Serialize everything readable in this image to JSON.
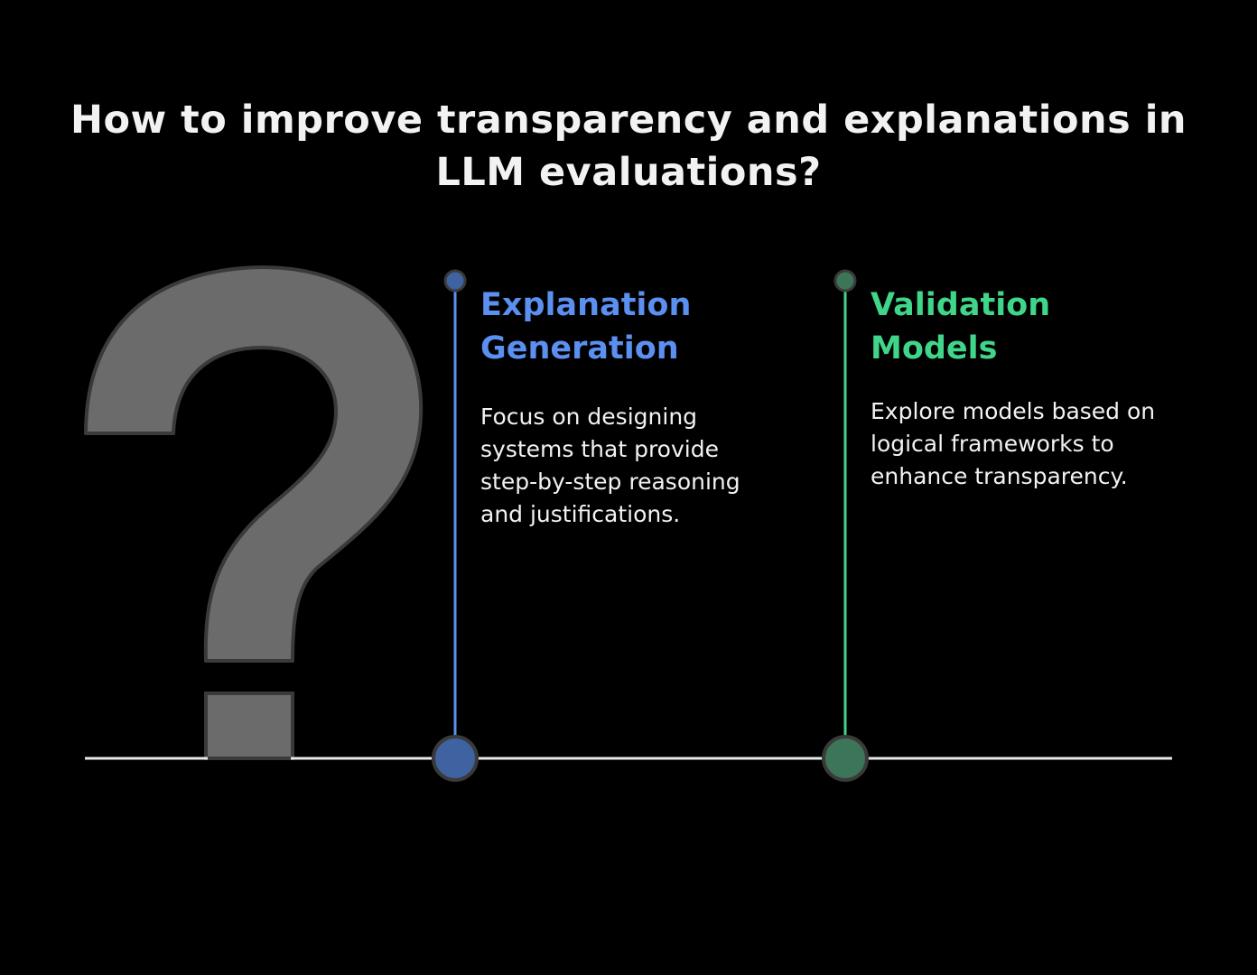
{
  "title": "How to improve transparency and explanations in LLM evaluations?",
  "items": [
    {
      "title": "Explanation Generation",
      "description": "Focus on designing systems that provide step-by-step reasoning and justifications.",
      "color": "#5b8ff0",
      "marker_fill": "#3f62a0"
    },
    {
      "title": "Validation Models",
      "description": "Explore models based on logical frameworks to enhance transparency.",
      "color": "#3fd68a",
      "marker_fill": "#3c7558"
    }
  ],
  "colors": {
    "background": "#000000",
    "text": "#f2f2f2",
    "baseline": "#e8e8e8",
    "question_mark_fill": "#6b6b6b",
    "question_mark_stroke": "#3a3a3a"
  },
  "icons": {
    "hero": "question-mark-icon"
  }
}
